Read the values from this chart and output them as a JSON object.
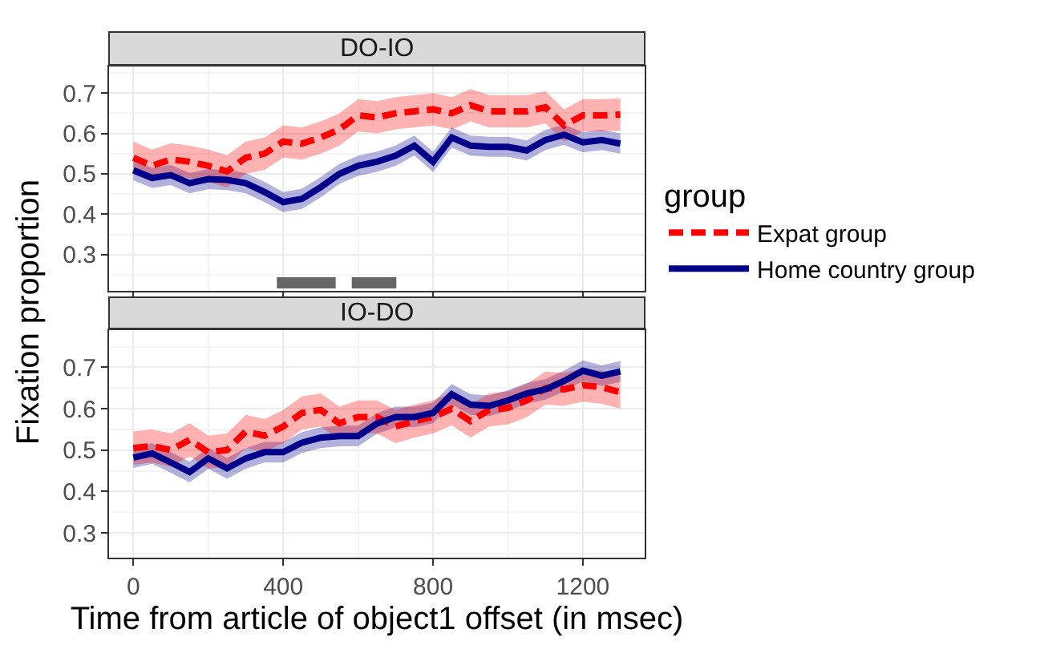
{
  "chart_data": [
    {
      "type": "line",
      "title": "DO-IO",
      "ylabel": "Fixation proportion",
      "legend_title": "group",
      "legend": "right",
      "grid": true,
      "tick_labels": "y",
      "x": [
        0,
        50,
        100,
        150,
        200,
        250,
        300,
        350,
        400,
        450,
        500,
        550,
        600,
        650,
        700,
        750,
        800,
        850,
        900,
        950,
        1000,
        1050,
        1100,
        1150,
        1200,
        1250,
        1300
      ],
      "xlim": [
        -65,
        1365
      ],
      "xticks": [
        0,
        400,
        800,
        1200
      ],
      "ylim": [
        0.21,
        0.766
      ],
      "yticks": [
        0.3,
        0.4,
        0.5,
        0.6,
        0.7
      ],
      "series": [
        {
          "name": "Home country group",
          "color": "#00008b",
          "line_style": "solid",
          "values": [
            0.509,
            0.49,
            0.497,
            0.477,
            0.487,
            0.485,
            0.477,
            0.455,
            0.43,
            0.438,
            0.467,
            0.5,
            0.52,
            0.53,
            0.545,
            0.57,
            0.53,
            0.59,
            0.57,
            0.567,
            0.567,
            0.558,
            0.584,
            0.597,
            0.578,
            0.584,
            0.575
          ],
          "lower": [
            0.484,
            0.465,
            0.472,
            0.452,
            0.462,
            0.46,
            0.452,
            0.43,
            0.405,
            0.413,
            0.442,
            0.475,
            0.495,
            0.505,
            0.52,
            0.545,
            0.505,
            0.565,
            0.545,
            0.542,
            0.542,
            0.533,
            0.559,
            0.572,
            0.553,
            0.559,
            0.55
          ],
          "upper": [
            0.534,
            0.515,
            0.522,
            0.502,
            0.512,
            0.51,
            0.502,
            0.48,
            0.455,
            0.463,
            0.492,
            0.525,
            0.545,
            0.555,
            0.57,
            0.595,
            0.555,
            0.615,
            0.595,
            0.592,
            0.592,
            0.583,
            0.609,
            0.622,
            0.603,
            0.609,
            0.6
          ]
        },
        {
          "name": "Expat group",
          "color": "#ff0000",
          "line_style": "dashed",
          "values": [
            0.54,
            0.52,
            0.536,
            0.53,
            0.52,
            0.506,
            0.54,
            0.55,
            0.58,
            0.575,
            0.59,
            0.61,
            0.645,
            0.64,
            0.65,
            0.655,
            0.66,
            0.65,
            0.67,
            0.655,
            0.655,
            0.655,
            0.665,
            0.62,
            0.645,
            0.645,
            0.647
          ],
          "lower": [
            0.5,
            0.48,
            0.496,
            0.49,
            0.48,
            0.466,
            0.5,
            0.51,
            0.54,
            0.535,
            0.55,
            0.57,
            0.605,
            0.6,
            0.61,
            0.615,
            0.62,
            0.61,
            0.63,
            0.615,
            0.615,
            0.615,
            0.625,
            0.58,
            0.605,
            0.605,
            0.607
          ],
          "upper": [
            0.58,
            0.56,
            0.576,
            0.57,
            0.56,
            0.546,
            0.58,
            0.59,
            0.62,
            0.615,
            0.63,
            0.65,
            0.685,
            0.68,
            0.69,
            0.695,
            0.7,
            0.69,
            0.71,
            0.695,
            0.695,
            0.695,
            0.705,
            0.66,
            0.685,
            0.685,
            0.687
          ]
        },
        {
          "color": "#666666",
          "line_style": "solid",
          "x": [
            383,
            540,
            560,
            583,
            702
          ],
          "values": [
            0.23,
            0.23,
            null,
            0.23,
            0.23
          ]
        }
      ]
    },
    {
      "type": "line",
      "title": "IO-DO",
      "xlabel": "Time from article of object1 offset (in msec)",
      "grid": true,
      "x": [
        0,
        50,
        100,
        150,
        200,
        250,
        300,
        350,
        400,
        450,
        500,
        550,
        600,
        650,
        700,
        750,
        800,
        850,
        900,
        950,
        1000,
        1050,
        1100,
        1150,
        1200,
        1250,
        1300
      ],
      "xlim": [
        -65,
        1365
      ],
      "xticks": [
        0,
        400,
        800,
        1200
      ],
      "ylim": [
        0.24,
        0.79
      ],
      "yticks": [
        0.3,
        0.4,
        0.5,
        0.6,
        0.7
      ],
      "series": [
        {
          "color": "#00008b",
          "line_style": "solid",
          "values": [
            0.482,
            0.492,
            0.47,
            0.447,
            0.48,
            0.456,
            0.48,
            0.495,
            0.495,
            0.518,
            0.53,
            0.534,
            0.534,
            0.564,
            0.58,
            0.58,
            0.59,
            0.635,
            0.61,
            0.607,
            0.62,
            0.637,
            0.647,
            0.667,
            0.692,
            0.68,
            0.69
          ],
          "lower": [
            0.457,
            0.467,
            0.445,
            0.422,
            0.455,
            0.431,
            0.455,
            0.47,
            0.47,
            0.493,
            0.505,
            0.509,
            0.509,
            0.539,
            0.555,
            0.555,
            0.565,
            0.61,
            0.585,
            0.582,
            0.595,
            0.612,
            0.622,
            0.642,
            0.667,
            0.655,
            0.665
          ],
          "upper": [
            0.507,
            0.517,
            0.495,
            0.472,
            0.505,
            0.481,
            0.505,
            0.52,
            0.52,
            0.543,
            0.555,
            0.559,
            0.559,
            0.589,
            0.605,
            0.605,
            0.615,
            0.66,
            0.635,
            0.632,
            0.645,
            0.662,
            0.672,
            0.692,
            0.717,
            0.705,
            0.715
          ]
        },
        {
          "color": "#ff0000",
          "line_style": "dashed",
          "values": [
            0.505,
            0.51,
            0.5,
            0.525,
            0.495,
            0.5,
            0.545,
            0.535,
            0.557,
            0.59,
            0.597,
            0.565,
            0.58,
            0.58,
            0.557,
            0.57,
            0.58,
            0.6,
            0.57,
            0.597,
            0.602,
            0.62,
            0.65,
            0.647,
            0.657,
            0.652,
            0.64
          ],
          "lower": [
            0.465,
            0.47,
            0.46,
            0.485,
            0.455,
            0.46,
            0.505,
            0.495,
            0.517,
            0.55,
            0.557,
            0.525,
            0.54,
            0.54,
            0.517,
            0.53,
            0.54,
            0.56,
            0.53,
            0.557,
            0.562,
            0.58,
            0.61,
            0.607,
            0.617,
            0.612,
            0.6
          ],
          "upper": [
            0.545,
            0.55,
            0.54,
            0.565,
            0.535,
            0.54,
            0.585,
            0.575,
            0.597,
            0.63,
            0.637,
            0.605,
            0.62,
            0.62,
            0.597,
            0.61,
            0.62,
            0.64,
            0.61,
            0.637,
            0.642,
            0.66,
            0.69,
            0.687,
            0.697,
            0.692,
            0.68
          ]
        }
      ]
    }
  ]
}
